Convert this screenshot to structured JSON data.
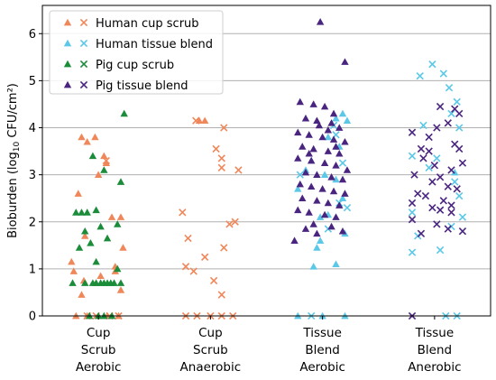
{
  "chart_data": {
    "type": "scatter",
    "ylabel": "Bioburden (log10 CFU/cm²)",
    "ylabel_parts": {
      "pre": "Bioburden (log",
      "sub": "10",
      "post": " CFU/cm²)"
    },
    "ylim": [
      0,
      6.6
    ],
    "yticks": [
      "0",
      "1",
      "2",
      "3",
      "4",
      "5",
      "6"
    ],
    "grid": "horizontal",
    "legend_position": "top-left",
    "categories": [
      {
        "lines": [
          "Cup",
          "Scrub",
          "Aerobic"
        ]
      },
      {
        "lines": [
          "Cup",
          "Scrub",
          "Anaerobic"
        ]
      },
      {
        "lines": [
          "Tissue",
          "Blend",
          "Aerobic"
        ]
      },
      {
        "lines": [
          "Tissue",
          "Blend",
          "Anerobic"
        ]
      }
    ],
    "series": [
      {
        "name": "Human cup scrub",
        "color": "#F0875A",
        "groups": [
          {
            "marker": "triangle",
            "category": 0,
            "points": [
              [
                -0.15,
                3.8
              ],
              [
                -0.03,
                3.8
              ],
              [
                0.05,
                3.4
              ],
              [
                0.07,
                3.25
              ],
              [
                -0.1,
                3.7
              ],
              [
                0.0,
                3.0
              ],
              [
                -0.18,
                2.6
              ],
              [
                0.12,
                2.1
              ],
              [
                0.2,
                2.1
              ],
              [
                0.22,
                1.45
              ],
              [
                -0.12,
                1.7
              ],
              [
                -0.24,
                1.15
              ],
              [
                -0.22,
                0.95
              ],
              [
                -0.13,
                0.75
              ],
              [
                -0.15,
                0.45
              ],
              [
                0.15,
                1.05
              ],
              [
                0.15,
                0.95
              ],
              [
                0.2,
                0.55
              ],
              [
                -0.02,
                0.7
              ],
              [
                0.02,
                0.85
              ],
              [
                -0.2,
                0.0
              ],
              [
                -0.1,
                0.0
              ],
              [
                0.08,
                0.0
              ],
              [
                0.18,
                0.0
              ]
            ]
          },
          {
            "marker": "x",
            "category": 0,
            "points": [
              [
                0.07,
                3.3
              ],
              [
                -0.1,
                0.0
              ],
              [
                -0.02,
                0.0
              ],
              [
                0.1,
                0.0
              ],
              [
                0.18,
                0.0
              ]
            ]
          },
          {
            "marker": "triangle",
            "category": 1,
            "points": [
              [
                -0.1,
                4.15
              ],
              [
                -0.05,
                4.15
              ]
            ]
          },
          {
            "marker": "x",
            "category": 1,
            "points": [
              [
                -0.13,
                4.15
              ],
              [
                0.12,
                4.0
              ],
              [
                0.05,
                3.55
              ],
              [
                0.1,
                3.35
              ],
              [
                0.1,
                3.15
              ],
              [
                0.25,
                3.1
              ],
              [
                -0.25,
                2.2
              ],
              [
                0.17,
                1.95
              ],
              [
                0.22,
                2.0
              ],
              [
                -0.2,
                1.65
              ],
              [
                0.12,
                1.45
              ],
              [
                -0.22,
                1.05
              ],
              [
                -0.15,
                0.95
              ],
              [
                -0.05,
                1.25
              ],
              [
                0.03,
                0.75
              ],
              [
                0.1,
                0.45
              ],
              [
                -0.22,
                0.0
              ],
              [
                -0.12,
                0.0
              ],
              [
                0.0,
                0.0
              ],
              [
                0.1,
                0.0
              ],
              [
                0.2,
                0.0
              ]
            ]
          }
        ]
      },
      {
        "name": "Human tissue blend",
        "color": "#5BC8E8",
        "groups": [
          {
            "marker": "triangle",
            "category": 2,
            "points": [
              [
                0.18,
                4.3
              ],
              [
                0.22,
                4.15
              ],
              [
                0.12,
                4.2
              ],
              [
                0.05,
                3.8
              ],
              [
                0.15,
                3.6
              ],
              [
                -0.1,
                3.3
              ],
              [
                -0.15,
                3.1
              ],
              [
                0.02,
                3.0
              ],
              [
                0.12,
                2.9
              ],
              [
                -0.22,
                2.7
              ],
              [
                0.18,
                2.5
              ],
              [
                -0.02,
                2.1
              ],
              [
                0.05,
                2.15
              ],
              [
                0.2,
                1.75
              ],
              [
                -0.02,
                1.6
              ],
              [
                -0.05,
                1.45
              ],
              [
                -0.08,
                1.05
              ],
              [
                0.12,
                1.1
              ],
              [
                -0.22,
                0.0
              ],
              [
                0.0,
                0.0
              ],
              [
                0.2,
                0.0
              ]
            ]
          },
          {
            "marker": "x",
            "category": 2,
            "points": [
              [
                0.1,
                4.05
              ],
              [
                0.12,
                3.85
              ],
              [
                0.18,
                3.25
              ],
              [
                -0.2,
                3.0
              ],
              [
                0.15,
                2.4
              ],
              [
                0.22,
                2.3
              ],
              [
                0.05,
                1.85
              ],
              [
                -0.1,
                0.0
              ]
            ]
          },
          {
            "marker": "triangle",
            "category": 3,
            "points": [
              [
                0.18,
                3.05
              ]
            ]
          },
          {
            "marker": "x",
            "category": 3,
            "points": [
              [
                -0.02,
                5.35
              ],
              [
                -0.13,
                5.1
              ],
              [
                0.08,
                5.15
              ],
              [
                0.13,
                4.85
              ],
              [
                0.2,
                4.55
              ],
              [
                0.15,
                4.3
              ],
              [
                0.22,
                4.0
              ],
              [
                -0.1,
                4.05
              ],
              [
                -0.2,
                3.4
              ],
              [
                -0.05,
                3.15
              ],
              [
                0.02,
                3.35
              ],
              [
                0.18,
                2.85
              ],
              [
                0.22,
                2.55
              ],
              [
                -0.2,
                2.2
              ],
              [
                0.25,
                2.1
              ],
              [
                0.15,
                1.9
              ],
              [
                -0.15,
                1.7
              ],
              [
                0.05,
                1.4
              ],
              [
                -0.2,
                1.35
              ],
              [
                0.1,
                0.0
              ],
              [
                0.2,
                0.0
              ]
            ]
          }
        ]
      },
      {
        "name": "Pig cup scrub",
        "color": "#1A8C3A",
        "groups": [
          {
            "marker": "triangle",
            "category": 0,
            "points": [
              [
                0.23,
                4.3
              ],
              [
                -0.05,
                3.4
              ],
              [
                0.05,
                3.1
              ],
              [
                -0.2,
                2.2
              ],
              [
                -0.15,
                2.2
              ],
              [
                -0.1,
                2.2
              ],
              [
                -0.02,
                2.25
              ],
              [
                0.02,
                1.9
              ],
              [
                0.2,
                2.85
              ],
              [
                0.17,
                1.95
              ],
              [
                -0.12,
                1.8
              ],
              [
                -0.07,
                1.55
              ],
              [
                -0.17,
                1.45
              ],
              [
                0.08,
                1.65
              ],
              [
                -0.02,
                1.15
              ],
              [
                0.17,
                1.0
              ],
              [
                -0.23,
                0.7
              ],
              [
                -0.12,
                0.7
              ],
              [
                -0.05,
                0.7
              ],
              [
                -0.02,
                0.7
              ],
              [
                0.02,
                0.7
              ],
              [
                0.05,
                0.7
              ],
              [
                0.08,
                0.7
              ],
              [
                0.11,
                0.7
              ],
              [
                0.14,
                0.7
              ],
              [
                0.2,
                0.7
              ],
              [
                -0.08,
                0.0
              ],
              [
                0.0,
                0.0
              ],
              [
                0.05,
                0.0
              ],
              [
                0.12,
                0.0
              ]
            ]
          }
        ]
      },
      {
        "name": "Pig tissue blend",
        "color": "#4A2580",
        "groups": [
          {
            "marker": "triangle",
            "category": 2,
            "points": [
              [
                -0.02,
                6.25
              ],
              [
                0.2,
                5.4
              ],
              [
                -0.2,
                4.55
              ],
              [
                -0.08,
                4.5
              ],
              [
                0.02,
                4.45
              ],
              [
                0.1,
                4.3
              ],
              [
                -0.15,
                4.2
              ],
              [
                -0.05,
                4.15
              ],
              [
                0.08,
                4.1
              ],
              [
                0.15,
                4.0
              ],
              [
                -0.22,
                3.9
              ],
              [
                -0.12,
                3.85
              ],
              [
                0.0,
                3.8
              ],
              [
                0.1,
                3.75
              ],
              [
                0.2,
                3.7
              ],
              [
                -0.18,
                3.6
              ],
              [
                -0.08,
                3.55
              ],
              [
                0.05,
                3.5
              ],
              [
                0.15,
                3.45
              ],
              [
                -0.22,
                3.35
              ],
              [
                -0.1,
                3.3
              ],
              [
                0.02,
                3.25
              ],
              [
                0.12,
                3.2
              ],
              [
                0.22,
                3.1
              ],
              [
                -0.15,
                3.05
              ],
              [
                -0.05,
                3.0
              ],
              [
                0.08,
                2.95
              ],
              [
                0.18,
                2.9
              ],
              [
                -0.2,
                2.8
              ],
              [
                -0.1,
                2.75
              ],
              [
                0.0,
                2.7
              ],
              [
                0.1,
                2.65
              ],
              [
                0.2,
                2.6
              ],
              [
                -0.18,
                2.5
              ],
              [
                -0.05,
                2.45
              ],
              [
                0.05,
                2.4
              ],
              [
                0.15,
                2.35
              ],
              [
                -0.22,
                2.25
              ],
              [
                -0.12,
                2.2
              ],
              [
                0.02,
                2.15
              ],
              [
                0.12,
                2.1
              ],
              [
                -0.08,
                1.95
              ],
              [
                0.08,
                1.9
              ],
              [
                -0.15,
                1.85
              ],
              [
                0.18,
                1.8
              ],
              [
                -0.05,
                1.75
              ],
              [
                -0.25,
                1.6
              ],
              [
                -0.12,
                3.45
              ],
              [
                0.05,
                3.95
              ],
              [
                -0.03,
                4.05
              ],
              [
                0.12,
                3.6
              ]
            ]
          },
          {
            "marker": "x",
            "category": 3,
            "points": [
              [
                0.18,
                4.4
              ],
              [
                0.22,
                4.3
              ],
              [
                0.05,
                4.45
              ],
              [
                0.12,
                4.1
              ],
              [
                0.02,
                4.0
              ],
              [
                -0.2,
                3.9
              ],
              [
                -0.05,
                3.8
              ],
              [
                0.18,
                3.65
              ],
              [
                0.22,
                3.55
              ],
              [
                -0.12,
                3.55
              ],
              [
                -0.05,
                3.5
              ],
              [
                -0.1,
                3.35
              ],
              [
                0.0,
                3.2
              ],
              [
                0.15,
                3.1
              ],
              [
                0.25,
                3.25
              ],
              [
                -0.18,
                3.0
              ],
              [
                0.05,
                2.95
              ],
              [
                -0.02,
                2.85
              ],
              [
                0.12,
                2.75
              ],
              [
                0.2,
                2.7
              ],
              [
                -0.15,
                2.6
              ],
              [
                -0.08,
                2.55
              ],
              [
                0.08,
                2.45
              ],
              [
                0.15,
                2.35
              ],
              [
                -0.2,
                2.4
              ],
              [
                -0.02,
                2.3
              ],
              [
                0.05,
                2.25
              ],
              [
                0.15,
                2.2
              ],
              [
                -0.2,
                2.05
              ],
              [
                0.12,
                1.85
              ],
              [
                0.25,
                1.8
              ],
              [
                -0.12,
                1.75
              ],
              [
                0.02,
                1.95
              ],
              [
                -0.2,
                0.0
              ]
            ]
          }
        ]
      }
    ]
  }
}
